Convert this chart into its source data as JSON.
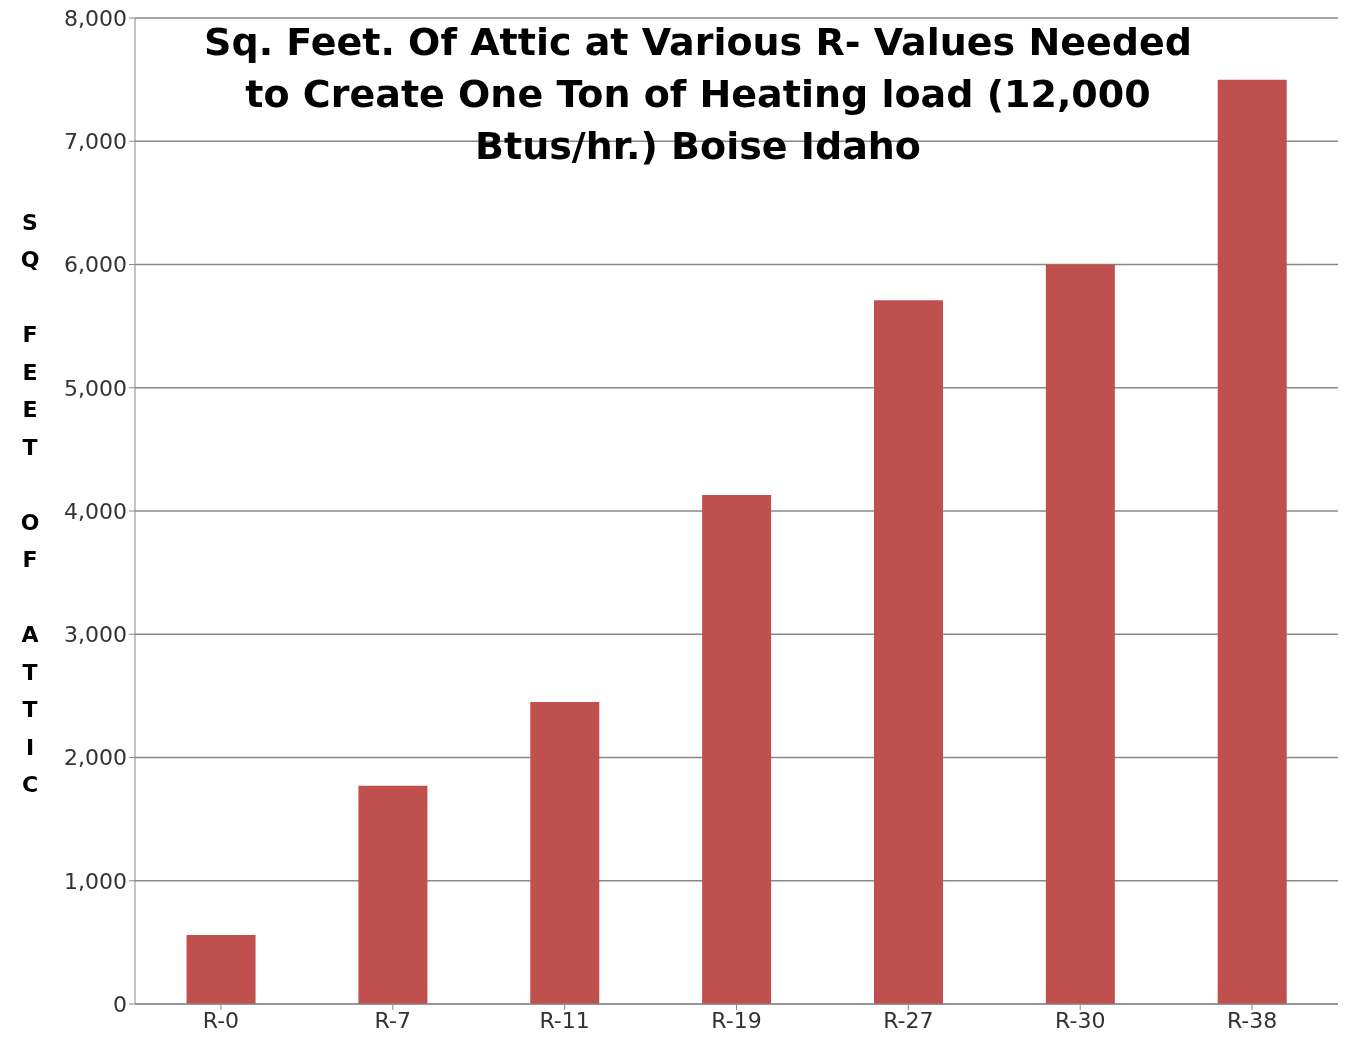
{
  "chart_data": {
    "type": "bar",
    "title": "Sq. Feet. Of Attic at Various R- Values Needed to Create One Ton of Heating load (12,000 Btus/hr.) Boise Idaho",
    "ylabel": "SQ FEET OF ATTIC",
    "categories": [
      "R-0",
      "R-7",
      "R-11",
      "R-19",
      "R-27",
      "R-30",
      "R-38"
    ],
    "values": [
      560,
      1770,
      2450,
      4130,
      5710,
      6000,
      7500
    ],
    "color": "#c0504d",
    "ylim": [
      0,
      8000
    ],
    "yticks": [
      {
        "value": 0,
        "label": "0"
      },
      {
        "value": 1000,
        "label": "1,000"
      },
      {
        "value": 2000,
        "label": "2,000"
      },
      {
        "value": 3000,
        "label": "3,000"
      },
      {
        "value": 4000,
        "label": "4,000"
      },
      {
        "value": 5000,
        "label": "5,000"
      },
      {
        "value": 6000,
        "label": "6,000"
      },
      {
        "value": 7000,
        "label": "7,000"
      },
      {
        "value": 8000,
        "label": "8,000"
      }
    ],
    "grid": "y",
    "legend": false
  }
}
